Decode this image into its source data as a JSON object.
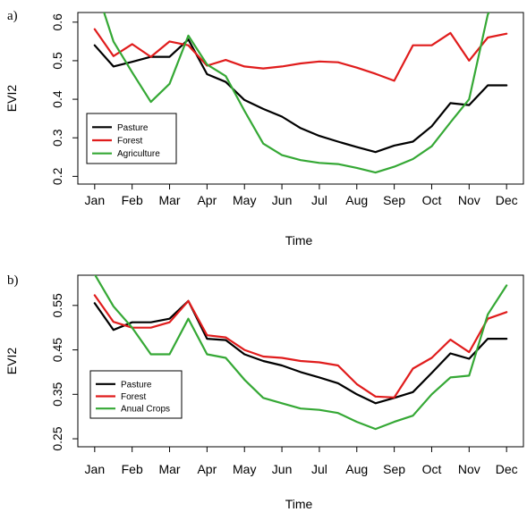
{
  "chart_data": [
    {
      "type": "line",
      "panel_tag": "a)",
      "xlabel": "Time",
      "ylabel": "EVI2",
      "x_ticks": [
        "Jan",
        "Feb",
        "Mar",
        "Apr",
        "May",
        "Jun",
        "Jul",
        "Aug",
        "Sep",
        "Oct",
        "Nov",
        "Dec"
      ],
      "x_tick_values": [
        1,
        2,
        3,
        4,
        5,
        6,
        7,
        8,
        9,
        10,
        11,
        12
      ],
      "y_ticks": [
        "0.2",
        "0.3",
        "0.4",
        "0.5",
        "0.6"
      ],
      "y_tick_values": [
        0.2,
        0.3,
        0.4,
        0.5,
        0.6
      ],
      "xlim": [
        0.55,
        12.45
      ],
      "ylim": [
        0.18,
        0.625
      ],
      "legend_position": "bottom-left",
      "series": [
        {
          "name": "Pasture",
          "color": "#000000",
          "x": [
            1,
            1.5,
            2,
            2.5,
            3,
            3.5,
            4,
            4.5,
            5,
            5.5,
            6,
            6.5,
            7,
            7.5,
            8,
            8.5,
            9,
            9.5,
            10,
            10.5,
            11,
            11.5,
            12
          ],
          "values": [
            0.54,
            0.485,
            0.497,
            0.51,
            0.51,
            0.555,
            0.465,
            0.445,
            0.398,
            0.375,
            0.355,
            0.325,
            0.305,
            0.29,
            0.276,
            0.263,
            0.28,
            0.29,
            0.33,
            0.39,
            0.385,
            0.436,
            0.436
          ]
        },
        {
          "name": "Forest",
          "color": "#e01c1c",
          "x": [
            1,
            1.5,
            2,
            2.5,
            3,
            3.5,
            4,
            4.5,
            5,
            5.5,
            6,
            6.5,
            7,
            7.5,
            8,
            8.5,
            9,
            9.5,
            10,
            10.5,
            11,
            11.5,
            12
          ],
          "values": [
            0.582,
            0.512,
            0.543,
            0.51,
            0.55,
            0.54,
            0.487,
            0.502,
            0.485,
            0.48,
            0.485,
            0.493,
            0.498,
            0.496,
            0.482,
            0.466,
            0.448,
            0.54,
            0.54,
            0.572,
            0.5,
            0.56,
            0.57
          ]
        },
        {
          "name": "Agriculture",
          "color": "#35a835",
          "x": [
            1,
            1.5,
            2,
            2.5,
            3,
            3.5,
            4,
            4.5,
            5,
            5.5,
            6,
            6.5,
            7,
            7.5,
            8,
            8.5,
            9,
            9.5,
            10,
            10.5,
            11,
            11.5,
            12
          ],
          "values": [
            0.7,
            0.55,
            0.47,
            0.393,
            0.44,
            0.565,
            0.49,
            0.46,
            0.37,
            0.285,
            0.255,
            0.242,
            0.235,
            0.232,
            0.222,
            0.21,
            0.225,
            0.245,
            0.278,
            0.34,
            0.4,
            0.62,
            0.7
          ]
        }
      ]
    },
    {
      "type": "line",
      "panel_tag": "b)",
      "xlabel": "Time",
      "ylabel": "EVI2",
      "x_ticks": [
        "Jan",
        "Feb",
        "Mar",
        "Apr",
        "May",
        "Jun",
        "Jul",
        "Aug",
        "Sep",
        "Oct",
        "Nov",
        "Dec"
      ],
      "x_tick_values": [
        1,
        2,
        3,
        4,
        5,
        6,
        7,
        8,
        9,
        10,
        11,
        12
      ],
      "y_ticks": [
        "0.25",
        "0.35",
        "0.45",
        "0.55"
      ],
      "y_tick_values": [
        0.25,
        0.35,
        0.45,
        0.55
      ],
      "xlim": [
        0.55,
        12.45
      ],
      "ylim": [
        0.232,
        0.618
      ],
      "legend_position": "bottom-left",
      "series": [
        {
          "name": "Pasture",
          "color": "#000000",
          "x": [
            1,
            1.5,
            2,
            2.5,
            3,
            3.5,
            4,
            4.5,
            5,
            5.5,
            6,
            6.5,
            7,
            7.5,
            8,
            8.5,
            9,
            9.5,
            10,
            10.5,
            11,
            11.5,
            12
          ],
          "values": [
            0.555,
            0.495,
            0.512,
            0.512,
            0.52,
            0.56,
            0.475,
            0.472,
            0.44,
            0.425,
            0.415,
            0.4,
            0.388,
            0.375,
            0.35,
            0.33,
            0.342,
            0.355,
            0.398,
            0.442,
            0.43,
            0.475,
            0.475
          ]
        },
        {
          "name": "Forest",
          "color": "#e01c1c",
          "x": [
            1,
            1.5,
            2,
            2.5,
            3,
            3.5,
            4,
            4.5,
            5,
            5.5,
            6,
            6.5,
            7,
            7.5,
            8,
            8.5,
            9,
            9.5,
            10,
            10.5,
            11,
            11.5,
            12
          ],
          "values": [
            0.573,
            0.513,
            0.5,
            0.5,
            0.512,
            0.56,
            0.483,
            0.478,
            0.45,
            0.435,
            0.432,
            0.425,
            0.422,
            0.415,
            0.373,
            0.345,
            0.343,
            0.408,
            0.432,
            0.473,
            0.445,
            0.52,
            0.535
          ]
        },
        {
          "name": "Anual Crops",
          "color": "#35a835",
          "x": [
            1,
            1.5,
            2,
            2.5,
            3,
            3.5,
            4,
            4.5,
            5,
            5.5,
            6,
            6.5,
            7,
            7.5,
            8,
            8.5,
            9,
            9.5,
            10,
            10.5,
            11,
            11.5,
            12
          ],
          "values": [
            0.62,
            0.548,
            0.5,
            0.44,
            0.44,
            0.52,
            0.44,
            0.432,
            0.383,
            0.342,
            0.33,
            0.318,
            0.315,
            0.308,
            0.288,
            0.272,
            0.288,
            0.302,
            0.35,
            0.388,
            0.392,
            0.53,
            0.595
          ]
        }
      ]
    }
  ]
}
